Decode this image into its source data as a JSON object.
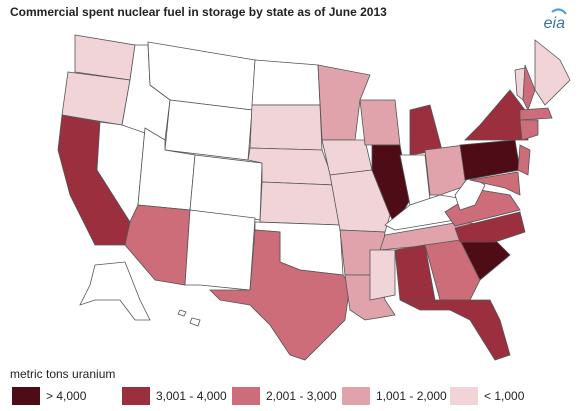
{
  "title": "Commercial spent nuclear fuel in storage by state as of June 2013",
  "logo": "eia",
  "legend": {
    "title": "metric tons uranium",
    "items": [
      {
        "label": "> 4,000",
        "color": "#4d0c16"
      },
      {
        "label": "3,001 - 4,000",
        "color": "#9b2f3e"
      },
      {
        "label": "2,001 - 3,000",
        "color": "#cc6d79"
      },
      {
        "label": "1,001 - 2,000",
        "color": "#e0a3ab"
      },
      {
        "label": "< 1,000",
        "color": "#f1d4d8"
      }
    ]
  }
}
